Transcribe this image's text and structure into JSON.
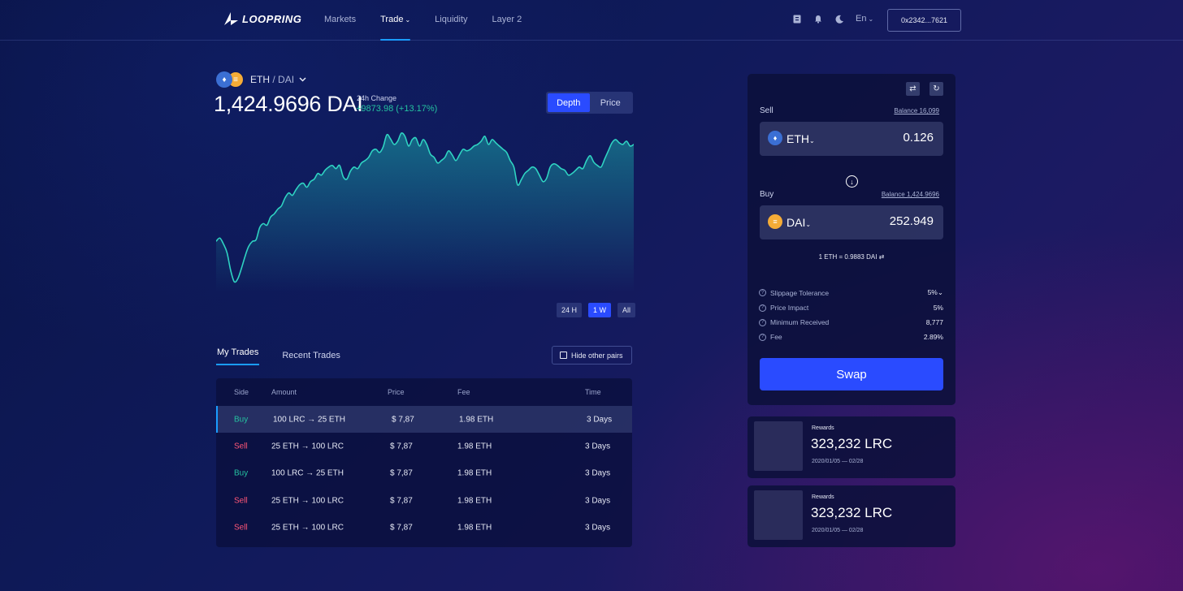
{
  "colors": {
    "accent": "#2a4bff",
    "highlight": "#1a9cff",
    "buy": "#25c2a0",
    "sell": "#ff5677",
    "eth": "#3b6fd4",
    "dai": "#f5ac37"
  },
  "header": {
    "logo_text": "LOOPRING",
    "nav": [
      "Markets",
      "Trade",
      "Liquidity",
      "Layer 2"
    ],
    "trade_chevron": "⌄",
    "icons": [
      "wallet-icon",
      "bell-icon",
      "moon-icon"
    ],
    "lang": "En",
    "lang_chevron": "⌄",
    "wallet": "0x2342...7621"
  },
  "pair": {
    "base": "ETH",
    "quote": "DAI",
    "separator": "/",
    "price": "1,424.9696 DAI",
    "change_label": "24h Change",
    "change_value": "+9873.98 (+13.17%)"
  },
  "chart_toggle": [
    "Depth",
    "Price"
  ],
  "chart_data": {
    "type": "area",
    "title": "",
    "xlabel": "",
    "ylabel": "",
    "ylim": [
      0,
      200
    ],
    "values": [
      58,
      62,
      55,
      44,
      22,
      8,
      12,
      25,
      40,
      52,
      58,
      60,
      75,
      80,
      78,
      88,
      92,
      98,
      102,
      112,
      118,
      115,
      122,
      128,
      130,
      125,
      132,
      135,
      142,
      140,
      146,
      150,
      152,
      148,
      152,
      138,
      135,
      145,
      150,
      148,
      155,
      158,
      162,
      170,
      172,
      168,
      175,
      190,
      185,
      178,
      182,
      192,
      188,
      176,
      184,
      186,
      176,
      184,
      178,
      166,
      162,
      155,
      158,
      162,
      170,
      165,
      158,
      165,
      172,
      170,
      172,
      176,
      178,
      182,
      188,
      178,
      184,
      180,
      176,
      172,
      168,
      158,
      150,
      128,
      134,
      142,
      146,
      150,
      148,
      140,
      132,
      136,
      150,
      154,
      152,
      148,
      146,
      140,
      142,
      146,
      150,
      148,
      158,
      164,
      156,
      152,
      150,
      160,
      170,
      180,
      184,
      180,
      178,
      182,
      176,
      178
    ],
    "grid": false
  },
  "time_ranges": [
    "24 H",
    "1 W",
    "All"
  ],
  "trade_tabs": [
    "My Trades",
    "Recent Trades"
  ],
  "hide_pairs": "Hide other pairs",
  "table": {
    "headers": [
      "Side",
      "Amount",
      "Price",
      "Fee",
      "Time"
    ],
    "rows": [
      {
        "side": "Buy",
        "amount": "100 LRC → 25 ETH",
        "price": "$ 7,87",
        "fee": "1.98 ETH",
        "time": "3 Days"
      },
      {
        "side": "Sell",
        "amount": "25 ETH → 100 LRC",
        "price": "$ 7,87",
        "fee": "1.98 ETH",
        "time": "3 Days"
      },
      {
        "side": "Buy",
        "amount": "100 LRC → 25 ETH",
        "price": "$ 7,87",
        "fee": "1.98 ETH",
        "time": "3 Days"
      },
      {
        "side": "Sell",
        "amount": "25 ETH → 100 LRC",
        "price": "$ 7,87",
        "fee": "1.98 ETH",
        "time": "3 Days"
      },
      {
        "side": "Sell",
        "amount": "25 ETH → 100 LRC",
        "price": "$ 7,87",
        "fee": "1.98 ETH",
        "time": "3 Days"
      }
    ]
  },
  "swap": {
    "sell_label": "Sell",
    "sell_balance": "Balance 16,099",
    "sell_token": "ETH",
    "sell_amount": "0.126",
    "buy_label": "Buy",
    "buy_balance": "Balance 1,424.9696",
    "buy_token": "DAI",
    "buy_amount": "252.949",
    "rate": "1 ETH = 0.9883 DAI",
    "token_chevron": "⌄",
    "info": [
      {
        "label": "Slippage Tolerance",
        "value": "5%⌄"
      },
      {
        "label": "Price Impact",
        "value": "5%"
      },
      {
        "label": "Minimum Received",
        "value": "8,777"
      },
      {
        "label": "Fee",
        "value": "2.89%"
      }
    ],
    "button": "Swap"
  },
  "rewards": [
    {
      "label": "Rewards",
      "amount": "323,232 LRC",
      "dates": "2020/01/05 — 02/28"
    },
    {
      "label": "Rewards",
      "amount": "323,232 LRC",
      "dates": "2020/01/05 — 02/28"
    }
  ]
}
